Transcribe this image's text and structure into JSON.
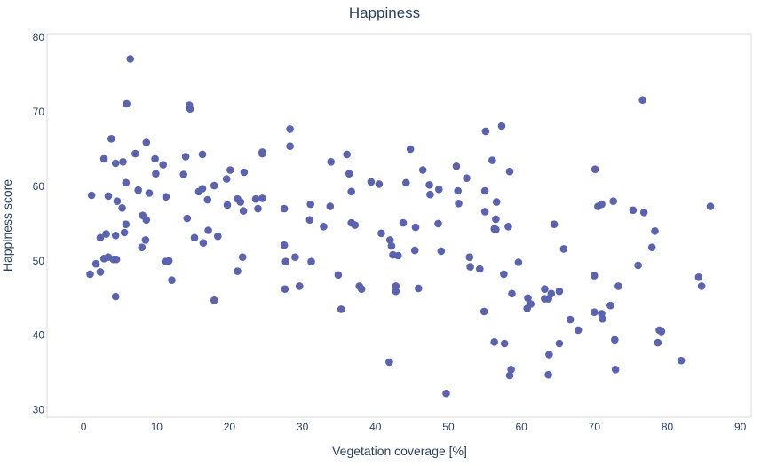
{
  "chart_data": {
    "type": "scatter",
    "title": "Happiness",
    "xlabel": "Vegetation coverage [%]",
    "ylabel": "Happiness score",
    "xlim": [
      -5,
      91.5
    ],
    "ylim": [
      29,
      80.5
    ],
    "xticks": [
      0,
      10,
      20,
      30,
      40,
      50,
      60,
      70,
      80,
      90
    ],
    "yticks": [
      30,
      40,
      50,
      60,
      70,
      80
    ],
    "grid": false,
    "marker_color": "#5b63ad",
    "series": [
      {
        "points": [
          [
            6.4,
            77.1
          ],
          [
            5.9,
            71.1
          ],
          [
            14.5,
            70.9
          ],
          [
            14.6,
            70.4
          ],
          [
            76.6,
            71.6
          ],
          [
            28.3,
            67.7
          ],
          [
            57.3,
            68.1
          ],
          [
            55.1,
            67.4
          ],
          [
            3.8,
            66.4
          ],
          [
            8.6,
            65.9
          ],
          [
            28.3,
            65.4
          ],
          [
            44.8,
            65.0
          ],
          [
            24.5,
            64.6
          ],
          [
            24.5,
            64.4
          ],
          [
            7.1,
            64.4
          ],
          [
            16.3,
            64.3
          ],
          [
            36.1,
            64.3
          ],
          [
            14.0,
            64.0
          ],
          [
            2.8,
            63.7
          ],
          [
            9.8,
            63.7
          ],
          [
            4.4,
            63.1
          ],
          [
            5.4,
            63.3
          ],
          [
            10.9,
            62.9
          ],
          [
            33.9,
            63.3
          ],
          [
            56.0,
            63.5
          ],
          [
            20.1,
            62.2
          ],
          [
            51.1,
            62.7
          ],
          [
            70.1,
            62.3
          ],
          [
            46.5,
            62.2
          ],
          [
            22.0,
            61.9
          ],
          [
            58.4,
            62.0
          ],
          [
            9.9,
            61.7
          ],
          [
            13.7,
            61.6
          ],
          [
            36.4,
            61.7
          ],
          [
            52.5,
            61.1
          ],
          [
            19.6,
            61.0
          ],
          [
            5.8,
            60.5
          ],
          [
            39.4,
            60.6
          ],
          [
            40.5,
            60.3
          ],
          [
            44.2,
            60.5
          ],
          [
            47.4,
            60.2
          ],
          [
            17.9,
            60.1
          ],
          [
            7.5,
            59.5
          ],
          [
            16.3,
            59.7
          ],
          [
            15.8,
            59.3
          ],
          [
            36.7,
            59.3
          ],
          [
            48.7,
            59.6
          ],
          [
            51.3,
            59.4
          ],
          [
            55.0,
            59.4
          ],
          [
            9.0,
            59.1
          ],
          [
            11.3,
            58.6
          ],
          [
            3.4,
            58.7
          ],
          [
            1.1,
            58.8
          ],
          [
            21.1,
            58.3
          ],
          [
            23.6,
            58.3
          ],
          [
            24.5,
            58.4
          ],
          [
            47.5,
            58.9
          ],
          [
            4.6,
            58.0
          ],
          [
            17.0,
            58.2
          ],
          [
            21.5,
            57.9
          ],
          [
            56.6,
            57.9
          ],
          [
            72.6,
            58.0
          ],
          [
            19.7,
            57.5
          ],
          [
            31.1,
            57.6
          ],
          [
            33.8,
            57.3
          ],
          [
            51.4,
            57.7
          ],
          [
            70.5,
            57.3
          ],
          [
            71.0,
            57.6
          ],
          [
            85.9,
            57.3
          ],
          [
            5.3,
            57.1
          ],
          [
            23.9,
            57.0
          ],
          [
            27.5,
            57.0
          ],
          [
            21.9,
            56.7
          ],
          [
            55.0,
            56.6
          ],
          [
            75.3,
            56.8
          ],
          [
            76.8,
            56.5
          ],
          [
            8.1,
            56.1
          ],
          [
            8.6,
            55.5
          ],
          [
            14.2,
            55.7
          ],
          [
            31.0,
            55.5
          ],
          [
            56.5,
            55.6
          ],
          [
            36.7,
            55.1
          ],
          [
            37.2,
            54.8
          ],
          [
            43.8,
            55.1
          ],
          [
            48.6,
            55.0
          ],
          [
            64.5,
            54.9
          ],
          [
            5.8,
            54.9
          ],
          [
            32.9,
            54.6
          ],
          [
            45.5,
            54.5
          ],
          [
            58.2,
            54.6
          ],
          [
            56.3,
            54.3
          ],
          [
            56.5,
            54.2
          ],
          [
            17.1,
            54.1
          ],
          [
            5.6,
            53.8
          ],
          [
            78.3,
            54.0
          ],
          [
            40.8,
            53.7
          ],
          [
            4.4,
            53.4
          ],
          [
            3.1,
            53.6
          ],
          [
            2.3,
            53.1
          ],
          [
            15.2,
            53.1
          ],
          [
            18.4,
            53.3
          ],
          [
            8.5,
            52.8
          ],
          [
            16.4,
            52.4
          ],
          [
            42.0,
            52.8
          ],
          [
            42.2,
            52.0
          ],
          [
            27.5,
            52.1
          ],
          [
            8.0,
            51.8
          ],
          [
            65.8,
            51.6
          ],
          [
            77.9,
            51.8
          ],
          [
            45.4,
            51.4
          ],
          [
            49.0,
            51.3
          ],
          [
            42.4,
            50.8
          ],
          [
            43.1,
            50.7
          ],
          [
            2.8,
            50.3
          ],
          [
            3.4,
            50.5
          ],
          [
            4.1,
            50.2
          ],
          [
            4.5,
            50.2
          ],
          [
            21.8,
            50.5
          ],
          [
            29.0,
            50.5
          ],
          [
            52.9,
            50.5
          ],
          [
            11.2,
            49.9
          ],
          [
            11.7,
            50.0
          ],
          [
            27.7,
            49.9
          ],
          [
            31.2,
            49.9
          ],
          [
            59.6,
            49.8
          ],
          [
            1.7,
            49.6
          ],
          [
            53.0,
            49.2
          ],
          [
            76.0,
            49.4
          ],
          [
            54.3,
            48.9
          ],
          [
            21.1,
            48.6
          ],
          [
            2.3,
            48.5
          ],
          [
            0.9,
            48.2
          ],
          [
            34.9,
            48.1
          ],
          [
            57.6,
            48.2
          ],
          [
            70.0,
            48.0
          ],
          [
            84.3,
            47.8
          ],
          [
            12.1,
            47.4
          ],
          [
            84.7,
            46.6
          ],
          [
            29.6,
            46.6
          ],
          [
            37.8,
            46.6
          ],
          [
            42.8,
            46.6
          ],
          [
            45.9,
            46.3
          ],
          [
            27.6,
            46.2
          ],
          [
            38.1,
            46.2
          ],
          [
            42.8,
            45.9
          ],
          [
            63.2,
            46.2
          ],
          [
            64.1,
            45.6
          ],
          [
            65.2,
            45.9
          ],
          [
            73.3,
            46.6
          ],
          [
            58.7,
            45.6
          ],
          [
            4.4,
            45.2
          ],
          [
            60.9,
            45.0
          ],
          [
            63.2,
            44.9
          ],
          [
            63.7,
            44.9
          ],
          [
            17.9,
            44.7
          ],
          [
            61.3,
            44.2
          ],
          [
            72.2,
            44.0
          ],
          [
            60.8,
            43.6
          ],
          [
            35.3,
            43.5
          ],
          [
            54.9,
            43.2
          ],
          [
            71.0,
            42.9
          ],
          [
            70.0,
            43.1
          ],
          [
            71.1,
            42.2
          ],
          [
            66.7,
            42.1
          ],
          [
            67.8,
            40.7
          ],
          [
            78.9,
            40.7
          ],
          [
            79.2,
            40.5
          ],
          [
            72.8,
            39.4
          ],
          [
            56.3,
            39.1
          ],
          [
            57.7,
            38.9
          ],
          [
            65.2,
            38.9
          ],
          [
            78.7,
            39.0
          ],
          [
            63.8,
            37.4
          ],
          [
            41.9,
            36.4
          ],
          [
            81.9,
            36.6
          ],
          [
            58.6,
            35.4
          ],
          [
            72.9,
            35.4
          ],
          [
            58.4,
            34.6
          ],
          [
            63.7,
            34.7
          ],
          [
            49.7,
            32.2
          ]
        ]
      }
    ]
  }
}
